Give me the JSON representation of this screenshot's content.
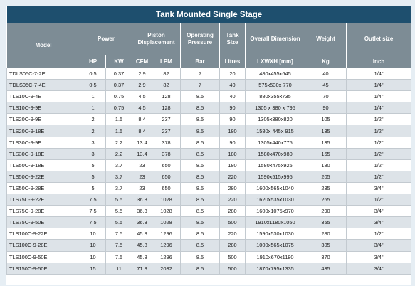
{
  "title": "Tank Mounted Single Stage",
  "headers": {
    "model": "Model",
    "power": "Power",
    "piston": "Piston Displacement",
    "pressure": "Operating Pressure",
    "tank": "Tank Size",
    "dimension": "Overall Dimension",
    "weight": "Weight",
    "outlet": "Outlet size"
  },
  "units": {
    "hp": "HP",
    "kw": "KW",
    "cfm": "CFM",
    "lpm": "LPM",
    "bar": "Bar",
    "litres": "Litres",
    "lxwxh": "LXWXH [mm]",
    "kg": "Kg",
    "inch": "Inch"
  },
  "rows": [
    [
      "TDLS05C-7-2E",
      "0.5",
      "0.37",
      "2.9",
      "82",
      "7",
      "20",
      "480x455x645",
      "40",
      "1/4\""
    ],
    [
      "TDLS05C-7-4E",
      "0.5",
      "0.37",
      "2.9",
      "82",
      "7",
      "40",
      "575x530x 770",
      "45",
      "1/4\""
    ],
    [
      "TLS10C-9-4E",
      "1",
      "0.75",
      "4.5",
      "128",
      "8.5",
      "40",
      "880x355x735",
      "70",
      "1/4\""
    ],
    [
      "TLS10C-9-9E",
      "1",
      "0.75",
      "4.5",
      "128",
      "8.5",
      "90",
      "1305 x 380 x 795",
      "90",
      "1/4\""
    ],
    [
      "TLS20C-9-9E",
      "2",
      "1.5",
      "8.4",
      "237",
      "8.5",
      "90",
      "1305x380x820",
      "105",
      "1/2\""
    ],
    [
      "TLS20C-9-18E",
      "2",
      "1.5",
      "8.4",
      "237",
      "8.5",
      "180",
      "1580x 445x 915",
      "135",
      "1/2\""
    ],
    [
      "TLS30C-9-9E",
      "3",
      "2.2",
      "13.4",
      "378",
      "8.5",
      "90",
      "1305x440x775",
      "135",
      "1/2\""
    ],
    [
      "TLS30C-9-18E",
      "3",
      "2.2",
      "13.4",
      "378",
      "8.5",
      "180",
      "1580x470x980",
      "165",
      "1/2\""
    ],
    [
      "TLS50C-9-18E",
      "5",
      "3.7",
      "23",
      "650",
      "8.5",
      "180",
      "1580x475x925",
      "180",
      "1/2\""
    ],
    [
      "TLS50C-9-22E",
      "5",
      "3.7",
      "23",
      "650",
      "8.5",
      "220",
      "1590x515x995",
      "205",
      "1/2\""
    ],
    [
      "TLS50C-9-28E",
      "5",
      "3.7",
      "23",
      "650",
      "8.5",
      "280",
      "1600x565x1040",
      "235",
      "3/4\""
    ],
    [
      "TLS75C-9-22E",
      "7.5",
      "5.5",
      "36.3",
      "1028",
      "8.5",
      "220",
      "1620x535x1030",
      "265",
      "1/2\""
    ],
    [
      "TLS75C-9-28E",
      "7.5",
      "5.5",
      "36.3",
      "1028",
      "8.5",
      "280",
      "1600x1075x970",
      "290",
      "3/4\""
    ],
    [
      "TLS75C-9-50E",
      "7.5",
      "5.5",
      "36.3",
      "1028",
      "8.5",
      "500",
      "1910x1180x1050",
      "355",
      "3/4\""
    ],
    [
      "TLS100C-9-22E",
      "10",
      "7.5",
      "45.8",
      "1296",
      "8.5",
      "220",
      "1590x530x1030",
      "280",
      "1/2\""
    ],
    [
      "TLS100C-9-28E",
      "10",
      "7.5",
      "45.8",
      "1296",
      "8.5",
      "280",
      "1000x565x1075",
      "305",
      "3/4\""
    ],
    [
      "TLS100C-9-50E",
      "10",
      "7.5",
      "45.8",
      "1296",
      "8.5",
      "500",
      "1910x670x1180",
      "370",
      "3/4\""
    ],
    [
      "TLS150C-9-50E",
      "15",
      "11",
      "71.8",
      "2032",
      "8.5",
      "500",
      "1870x795x1335",
      "435",
      "3/4\""
    ]
  ]
}
